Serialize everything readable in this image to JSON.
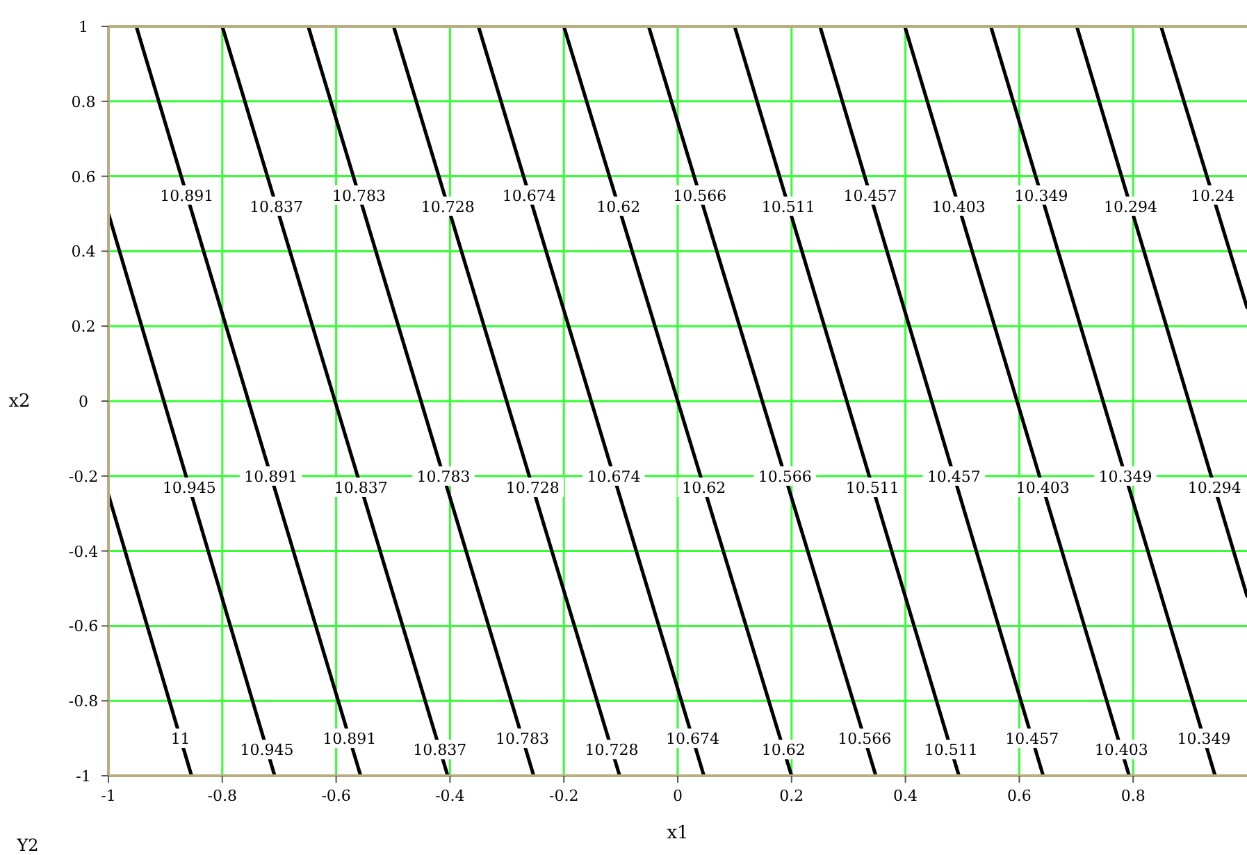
{
  "chart_data": {
    "type": "line",
    "xlabel": "x1",
    "ylabel": "x2",
    "annotations": [
      "Y2"
    ],
    "xlim": [
      -1,
      1
    ],
    "ylim": [
      -1,
      1
    ],
    "xticks": [
      -1,
      -0.8,
      -0.6,
      -0.4,
      -0.2,
      0,
      0.2,
      0.4,
      0.6,
      0.8
    ],
    "yticks": [
      -1,
      -0.8,
      -0.6,
      -0.4,
      -0.2,
      0,
      0.2,
      0.4,
      0.6,
      0.8,
      1
    ],
    "grid": true,
    "marker": "none",
    "line_style": "solid",
    "series": [
      {
        "name": "11",
        "color": "#000000",
        "x": [
          -1,
          -0.854
        ],
        "values": [
          -0.25,
          -1
        ]
      },
      {
        "name": "10.945",
        "color": "#000000",
        "x": [
          -1,
          -0.708
        ],
        "values": [
          0.5,
          -1
        ]
      },
      {
        "name": "10.891",
        "color": "#000000",
        "x": [
          -0.951,
          -0.557
        ],
        "values": [
          1,
          -1
        ]
      },
      {
        "name": "10.837",
        "color": "#000000",
        "x": [
          -0.8,
          -0.404
        ],
        "values": [
          1,
          -1
        ]
      },
      {
        "name": "10.783",
        "color": "#000000",
        "x": [
          -0.649,
          -0.253
        ],
        "values": [
          1,
          -1
        ]
      },
      {
        "name": "10.728",
        "color": "#000000",
        "x": [
          -0.499,
          -0.102
        ],
        "values": [
          1,
          -1
        ]
      },
      {
        "name": "10.674",
        "color": "#000000",
        "x": [
          -0.35,
          0.046
        ],
        "values": [
          1,
          -1
        ]
      },
      {
        "name": "10.62",
        "color": "#000000",
        "x": [
          -0.2,
          0.2
        ],
        "values": [
          1,
          -1
        ]
      },
      {
        "name": "10.566",
        "color": "#000000",
        "x": [
          -0.051,
          0.348
        ],
        "values": [
          1,
          -1
        ]
      },
      {
        "name": "10.511",
        "color": "#000000",
        "x": [
          0.1,
          0.494
        ],
        "values": [
          1,
          -1
        ]
      },
      {
        "name": "10.457",
        "color": "#000000",
        "x": [
          0.25,
          0.642
        ],
        "values": [
          1,
          -1
        ]
      },
      {
        "name": "10.403",
        "color": "#000000",
        "x": [
          0.399,
          0.793
        ],
        "values": [
          1,
          -1
        ]
      },
      {
        "name": "10.349",
        "color": "#000000",
        "x": [
          0.55,
          0.944
        ],
        "values": [
          1,
          -1
        ]
      },
      {
        "name": "10.294",
        "color": "#000000",
        "x": [
          0.701,
          1
        ],
        "values": [
          1,
          -0.52
        ]
      },
      {
        "name": "10.24",
        "color": "#000000",
        "x": [
          0.849,
          1
        ],
        "values": [
          1,
          0.25
        ]
      }
    ]
  }
}
